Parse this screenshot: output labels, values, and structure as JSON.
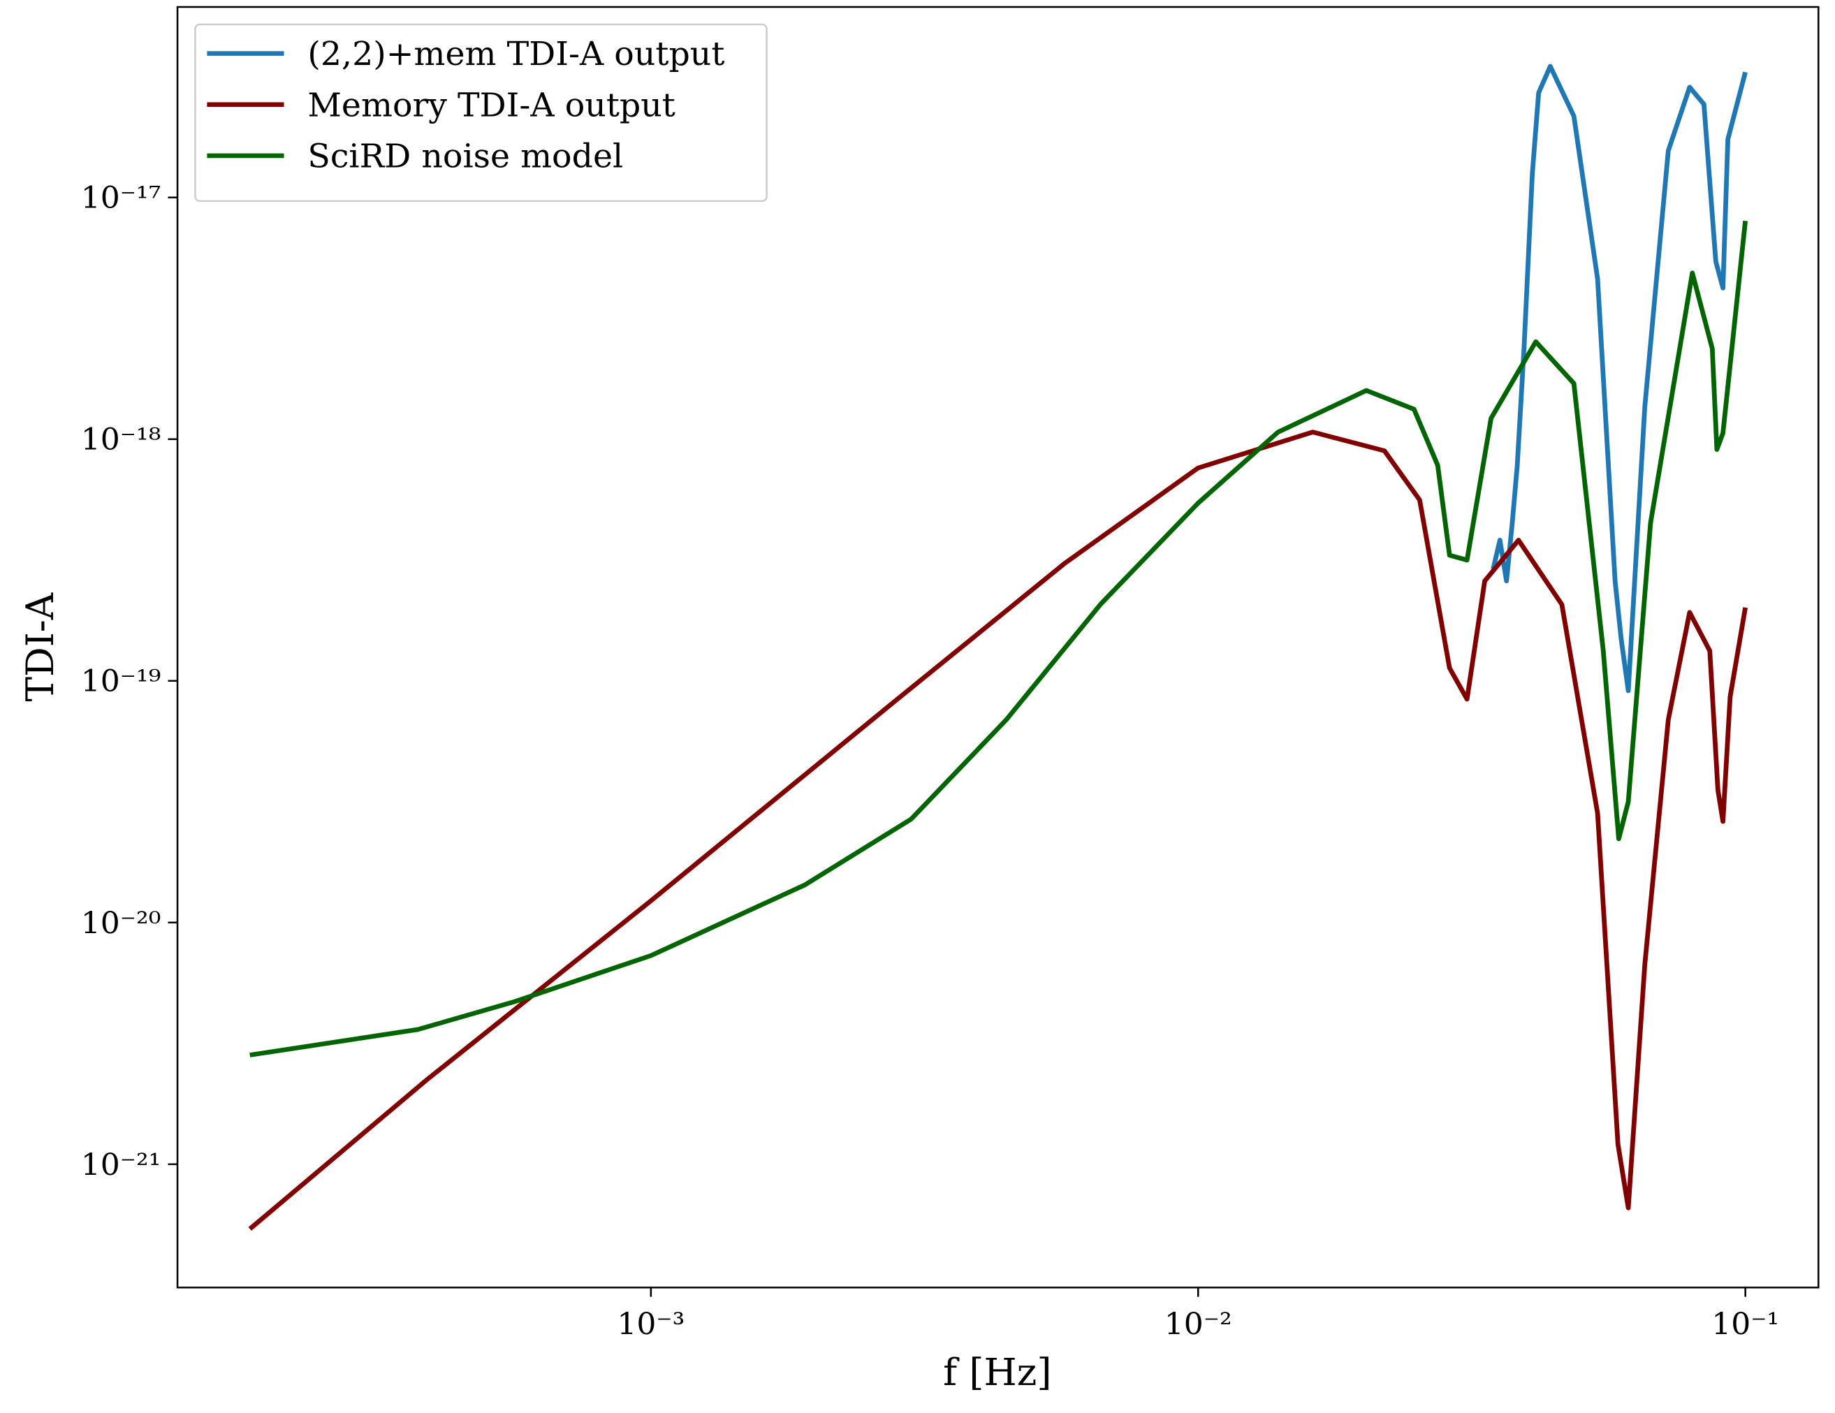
{
  "chart_data": {
    "type": "line",
    "xlabel": "f [Hz]",
    "ylabel": "TDI-A",
    "xscale": "log",
    "yscale": "log",
    "xlim": [
      0.0001364,
      0.136
    ],
    "ylim": [
      3.09e-22,
      6.14e-17
    ],
    "xticks": [
      {
        "value": 0.001,
        "label": "10⁻³"
      },
      {
        "value": 0.01,
        "label": "10⁻²"
      },
      {
        "value": 0.1,
        "label": "10⁻¹"
      }
    ],
    "yticks": [
      {
        "value": 1e-21,
        "label": "10⁻²¹"
      },
      {
        "value": 1e-20,
        "label": "10⁻²⁰"
      },
      {
        "value": 1e-19,
        "label": "10⁻¹⁹"
      },
      {
        "value": 1e-18,
        "label": "10⁻¹⁸"
      },
      {
        "value": 1e-17,
        "label": "10⁻¹⁷"
      }
    ],
    "legend": "upper left",
    "series": [
      {
        "name": "(2,2)+mem TDI-A output",
        "color": "#1f77b4",
        "x": [
          0.0346,
          0.0356,
          0.0366,
          0.0375,
          0.0383,
          0.0394,
          0.0408,
          0.0419,
          0.044,
          0.0486,
          0.0537,
          0.0578,
          0.0593,
          0.0611,
          0.0655,
          0.0723,
          0.0791,
          0.084,
          0.0883,
          0.091,
          0.0929,
          0.1
        ],
        "values": [
          2.9e-19,
          3.82e-19,
          2.59e-19,
          4.5e-19,
          7.8e-19,
          2.37e-18,
          1.25e-17,
          2.71e-17,
          3.49e-17,
          2.17e-17,
          4.6e-18,
          2.59e-19,
          1.49e-19,
          9.1e-20,
          1.36e-18,
          1.56e-17,
          2.86e-17,
          2.43e-17,
          5.44e-18,
          4.22e-18,
          1.74e-17,
          3.3e-17
        ]
      },
      {
        "name": "Memory TDI-A output",
        "color": "#800000",
        "x": [
          0.000185,
          0.000388,
          0.001,
          0.00271,
          0.0057,
          0.01,
          0.0162,
          0.0219,
          0.0254,
          0.0288,
          0.031,
          0.0334,
          0.0385,
          0.0462,
          0.0537,
          0.0585,
          0.0611,
          0.0655,
          0.0723,
          0.0791,
          0.0861,
          0.0891,
          0.091,
          0.0938,
          0.1
        ],
        "values": [
          5.4e-22,
          2.22e-21,
          1.23e-20,
          7.8e-20,
          3.06e-19,
          7.6e-19,
          1.07e-18,
          8.95e-19,
          5.6e-19,
          1.13e-19,
          8.4e-20,
          2.59e-19,
          3.82e-19,
          2.07e-19,
          2.83e-20,
          1.21e-21,
          6.6e-22,
          6.7e-21,
          6.9e-20,
          1.92e-19,
          1.33e-19,
          3.53e-20,
          2.62e-20,
          8.6e-20,
          2.01e-19
        ]
      },
      {
        "name": "SciRD noise model",
        "color": "#006400",
        "x": [
          0.000185,
          0.000375,
          0.000564,
          0.001,
          0.00191,
          0.00299,
          0.00446,
          0.00664,
          0.01,
          0.014,
          0.0203,
          0.0248,
          0.0274,
          0.0288,
          0.031,
          0.0343,
          0.0414,
          0.0486,
          0.055,
          0.0587,
          0.0611,
          0.0671,
          0.08,
          0.087,
          0.0887,
          0.091,
          0.1
        ],
        "values": [
          2.83e-21,
          3.61e-21,
          4.71e-21,
          7.3e-21,
          1.43e-20,
          2.68e-20,
          6.9e-20,
          2.08e-19,
          5.44e-19,
          1.07e-18,
          1.59e-18,
          1.33e-18,
          7.8e-19,
          3.31e-19,
          3.16e-19,
          1.22e-18,
          2.53e-18,
          1.7e-18,
          1.33e-19,
          2.22e-20,
          3.16e-20,
          4.5e-19,
          4.87e-18,
          2.37e-18,
          9.06e-19,
          1.06e-18,
          8e-18
        ]
      }
    ]
  }
}
